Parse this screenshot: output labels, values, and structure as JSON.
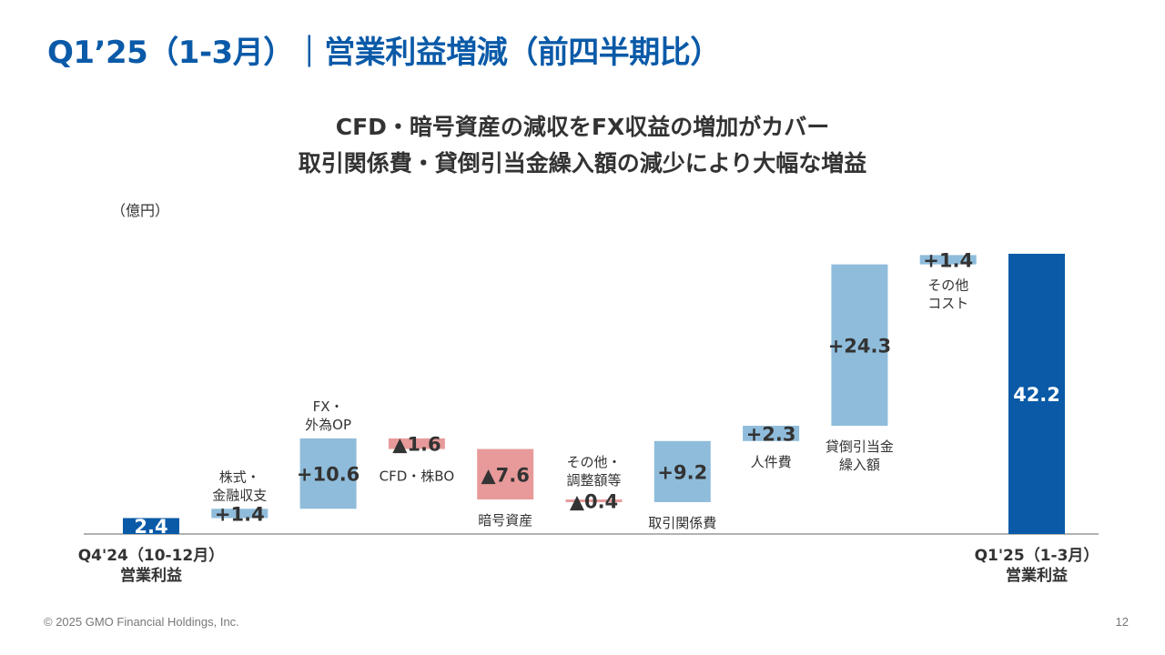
{
  "header": {
    "title": "Q1’25（1-3月）｜営業利益増減（前四半期比）",
    "subtitle_line1": "CFD・暗号資産の減収をFX収益の増加がカバー",
    "subtitle_line2": "取引関係費・貸倒引当金繰入額の減少により大幅な増益"
  },
  "chart_data": {
    "type": "waterfall",
    "unit_label": "（億円）",
    "colors": {
      "total": "#0a5aa8",
      "increase": "#8fbcdb",
      "decrease": "#e89a9a"
    },
    "steps": [
      {
        "label": [
          "Q4'24（10-12月）",
          "営業利益"
        ],
        "kind": "total",
        "value": 2.4,
        "value_label": "2.4"
      },
      {
        "label": [
          "株式・",
          "金融収支"
        ],
        "kind": "increase",
        "value": 1.4,
        "value_label": "+1.4"
      },
      {
        "label": [
          "FX・",
          "外為OP"
        ],
        "kind": "increase",
        "value": 10.6,
        "value_label": "+10.6"
      },
      {
        "label": [
          "CFD・株BO"
        ],
        "kind": "decrease",
        "value": -1.6,
        "value_label": "▲1.6"
      },
      {
        "label": [
          "暗号資産"
        ],
        "kind": "decrease",
        "value": -7.6,
        "value_label": "▲7.6"
      },
      {
        "label": [
          "その他・",
          "調整額等"
        ],
        "kind": "decrease",
        "value": -0.4,
        "value_label": "▲0.4"
      },
      {
        "label": [
          "取引関係費"
        ],
        "kind": "increase",
        "value": 9.2,
        "value_label": "+9.2"
      },
      {
        "label": [
          "人件費"
        ],
        "kind": "increase",
        "value": 2.3,
        "value_label": "+2.3"
      },
      {
        "label": [
          "貸倒引当金",
          "繰入額"
        ],
        "kind": "increase",
        "value": 24.3,
        "value_label": "+24.3"
      },
      {
        "label": [
          "その他",
          "コスト"
        ],
        "kind": "increase",
        "value": 1.4,
        "value_label": "+1.4"
      },
      {
        "label": [
          "Q1'25（1-3月）",
          "営業利益"
        ],
        "kind": "total",
        "value": 42.2,
        "value_label": "42.2"
      }
    ]
  },
  "footer": {
    "copyright": "© 2025 GMO Financial Holdings, Inc.",
    "page_number": "12"
  }
}
